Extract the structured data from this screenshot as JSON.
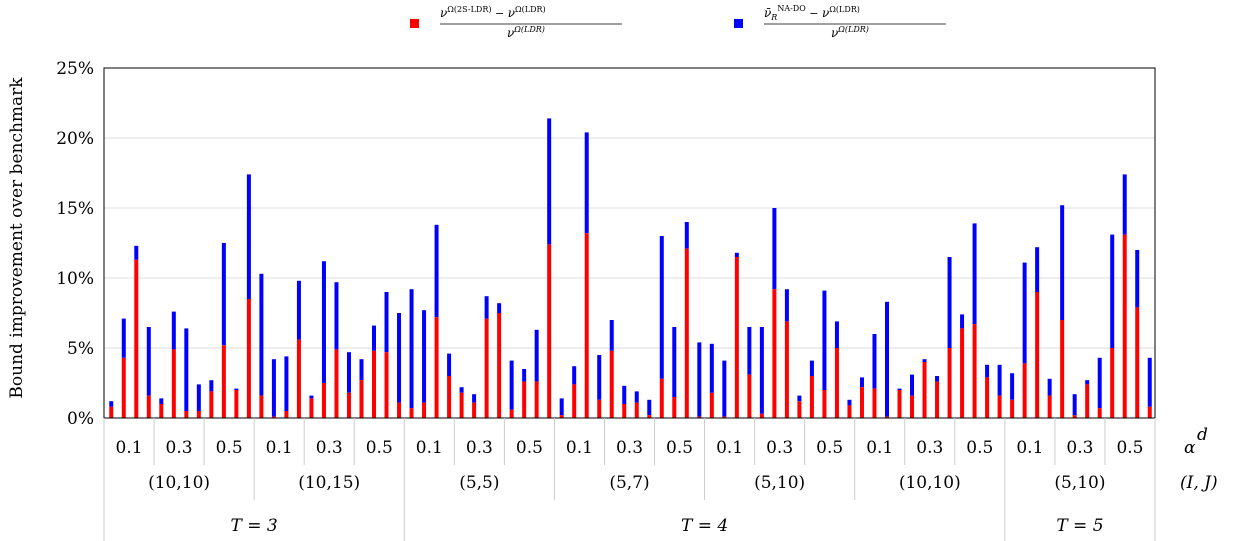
{
  "chart_data": {
    "type": "bar",
    "stacked": true,
    "ylabel": "Bound improvement over benchmark",
    "ytick_labels": [
      "0%",
      "5%",
      "10%",
      "15%",
      "20%",
      "25%"
    ],
    "ylim": [
      0,
      25
    ],
    "grid": true,
    "legend_position": "top",
    "series": [
      {
        "name": "ν^Ω(2S-LDR) − ν^Ω(LDR) / ν^Ω(LDR)",
        "color": "#ff0000"
      },
      {
        "name": "ν̄_R^NA-DO − ν^Ω(LDR) / ν^Ω(LDR)",
        "color": "#0000ff"
      }
    ],
    "legend": {
      "red": {
        "num_left": "ν",
        "num_left_sup": "Ω(2S-LDR)",
        "minus": "−",
        "num_right": "ν",
        "num_right_sup": "Ω(LDR)",
        "den": "ν",
        "den_sup": "Ω(LDR)"
      },
      "blue": {
        "num_left": "ν̄",
        "num_left_sub": "R",
        "num_left_sup": "NA-DO",
        "minus": "−",
        "num_right": "ν",
        "num_right_sup": "Ω(LDR)",
        "den": "ν",
        "den_sup": "Ω(LDR)"
      }
    },
    "groups": [
      {
        "T": "T = 3",
        "IJ": "(10,10)",
        "alpha": [
          {
            "a": "0.1",
            "red": [
              0.8,
              4.3,
              11.3,
              1.6
            ],
            "total": [
              1.2,
              7.1,
              12.3,
              6.5
            ]
          },
          {
            "a": "0.3",
            "red": [
              1.0,
              4.9,
              0.5,
              0.5
            ],
            "total": [
              1.4,
              7.6,
              6.4,
              2.4
            ]
          },
          {
            "a": "0.5",
            "red": [
              1.9,
              5.2,
              2.0,
              8.5
            ],
            "total": [
              2.7,
              12.5,
              2.1,
              17.4
            ]
          }
        ]
      },
      {
        "T": "",
        "IJ": "(10,15)",
        "alpha": [
          {
            "a": "0.1",
            "red": [
              1.6,
              0.1,
              0.5,
              5.6
            ],
            "total": [
              10.3,
              4.2,
              4.4,
              9.8
            ]
          },
          {
            "a": "0.3",
            "red": [
              1.4,
              2.5,
              4.9,
              1.8
            ],
            "total": [
              1.6,
              11.2,
              9.7,
              4.7
            ]
          },
          {
            "a": "0.5",
            "red": [
              2.7,
              4.8,
              4.7,
              1.1
            ],
            "total": [
              4.2,
              6.6,
              9.0,
              7.5
            ]
          }
        ]
      },
      {
        "T": "T = 4",
        "IJ": "(5,5)",
        "alpha": [
          {
            "a": "0.1",
            "red": [
              0.7,
              1.1,
              7.2,
              3.0
            ],
            "total": [
              9.2,
              7.7,
              13.8,
              4.6
            ]
          },
          {
            "a": "0.3",
            "red": [
              1.8,
              1.1,
              7.1,
              7.5
            ],
            "total": [
              2.2,
              1.7,
              8.7,
              8.2
            ]
          },
          {
            "a": "0.5",
            "red": [
              0.6,
              2.6,
              2.6,
              12.4
            ],
            "total": [
              4.1,
              3.5,
              6.3,
              21.4
            ]
          }
        ]
      },
      {
        "T": "",
        "IJ": "(5,7)",
        "alpha": [
          {
            "a": "0.1",
            "red": [
              0.2,
              2.4,
              13.2,
              1.3
            ],
            "total": [
              1.4,
              3.7,
              20.4,
              4.5
            ]
          },
          {
            "a": "0.3",
            "red": [
              4.8,
              1.0,
              1.1,
              0.2
            ],
            "total": [
              7.0,
              2.3,
              1.9,
              1.3
            ]
          },
          {
            "a": "0.5",
            "red": [
              2.8,
              1.5,
              12.1,
              0.1
            ],
            "total": [
              13.0,
              6.5,
              14.0,
              5.4
            ]
          }
        ]
      },
      {
        "T": "",
        "IJ": "(5,10)",
        "alpha": [
          {
            "a": "0.1",
            "red": [
              1.8,
              0.1,
              11.5,
              3.1
            ],
            "total": [
              5.3,
              4.1,
              11.8,
              6.5
            ]
          },
          {
            "a": "0.3",
            "red": [
              0.3,
              9.2,
              6.9,
              1.2
            ],
            "total": [
              6.5,
              15.0,
              9.2,
              1.6
            ]
          },
          {
            "a": "0.5",
            "red": [
              3.0,
              2.0,
              5.0,
              0.9
            ],
            "total": [
              4.1,
              9.1,
              6.9,
              1.3
            ]
          }
        ]
      },
      {
        "T": "",
        "IJ": "(10,10)",
        "alpha": [
          {
            "a": "0.1",
            "red": [
              2.2,
              2.1,
              0.1,
              2.0
            ],
            "total": [
              2.9,
              6.0,
              8.3,
              2.1
            ]
          },
          {
            "a": "0.3",
            "red": [
              1.6,
              4.0,
              2.6,
              5.0
            ],
            "total": [
              3.1,
              4.2,
              3.0,
              11.5
            ]
          },
          {
            "a": "0.5",
            "red": [
              6.4,
              6.7,
              2.9,
              1.6
            ],
            "total": [
              7.4,
              13.9,
              3.8,
              3.8
            ]
          }
        ]
      },
      {
        "T": "T = 5",
        "IJ": "(5,10)",
        "alpha": [
          {
            "a": "0.1",
            "red": [
              1.3,
              3.9,
              9.0,
              1.6
            ],
            "total": [
              3.2,
              11.1,
              12.2,
              2.8
            ]
          },
          {
            "a": "0.3",
            "red": [
              7.0,
              0.2,
              2.4,
              0.7
            ],
            "total": [
              15.2,
              1.7,
              2.7,
              4.3
            ]
          },
          {
            "a": "0.5",
            "red": [
              5.0,
              13.1,
              7.9,
              0.8
            ],
            "total": [
              13.1,
              17.4,
              12.0,
              4.3
            ]
          }
        ]
      }
    ],
    "axis_side_labels": {
      "alpha": "α",
      "alpha_sup": "d",
      "IJ": "(I, J)"
    }
  }
}
